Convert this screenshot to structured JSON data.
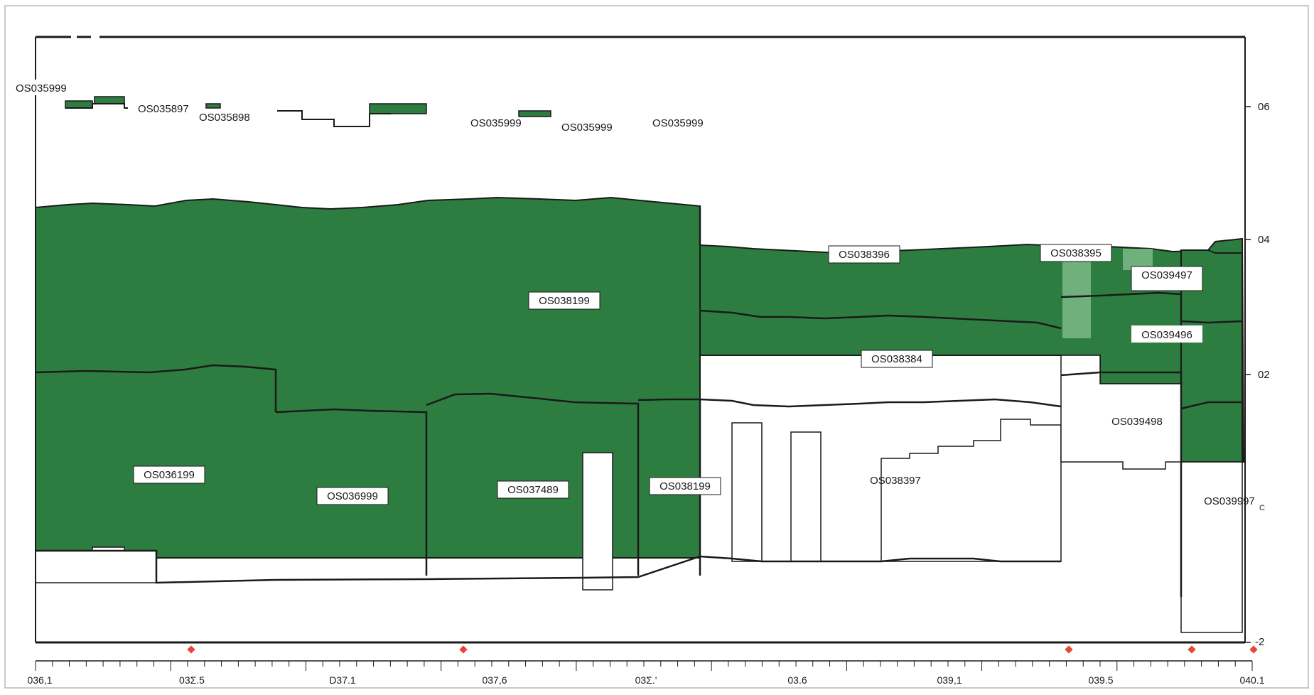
{
  "chart_data": {
    "type": "diagram",
    "y_ticks": [
      "06",
      "04",
      "02",
      "-2"
    ],
    "x_ticks": [
      "036,1",
      "03Σ.5",
      "D37.1",
      "037,6",
      "03Σ.'",
      "03.6",
      "039,1",
      "039.5",
      "040.1"
    ],
    "labels": {
      "top_left": "OS035999",
      "top_a": "OS035897",
      "top_b": "OS035898",
      "top_c": "OS035999",
      "top_d": "OS035999",
      "top_e": "OS035999",
      "os038199_main": "OS038199",
      "os038396": "OS038396",
      "os038395": "OS038395",
      "os039497": "OS039497",
      "os039496": "OS039496",
      "os038384": "OS038384",
      "os039498": "OS039498",
      "os036199": "OS036199",
      "os036999": "OS036999",
      "os037489": "OS037489",
      "os038199_b": "OS038199",
      "os038397": "OS038397",
      "os039997": "OS039997",
      "subscript_c": "C"
    },
    "colors": {
      "fill": "#2e7d40",
      "fill_light": "#6fb07c",
      "stroke": "#1a1a1a",
      "marker": "#e8463a"
    }
  }
}
